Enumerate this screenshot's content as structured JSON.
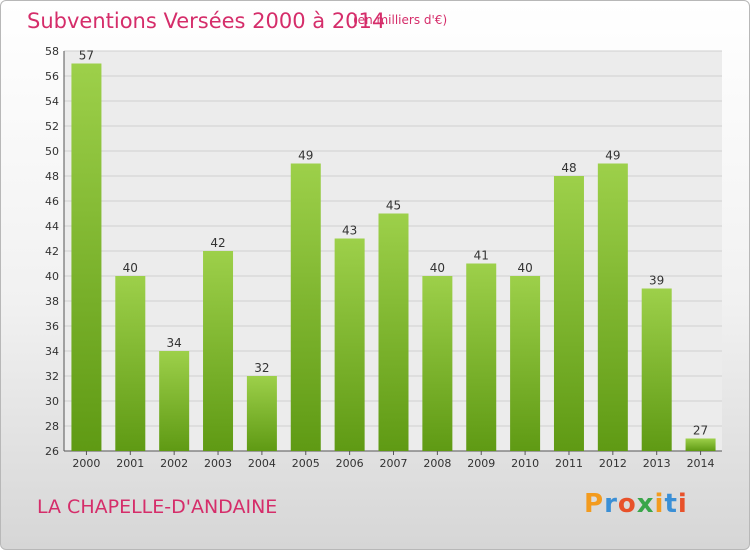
{
  "header": {
    "title": "Subventions Versées 2000 à 2014",
    "subtitle": "(en milliers d'€)"
  },
  "footer": {
    "commune": "LA CHAPELLE-D'ANDAINE",
    "logo_text": "Proxiti"
  },
  "colors": {
    "title": "#d52d6a",
    "bar_top": "#9dd04a",
    "bar_bottom": "#5f9a14",
    "logo_letters": [
      "#f39b1e",
      "#3a8fd6",
      "#e8512a",
      "#3aa64a",
      "#f39b1e",
      "#3a8fd6",
      "#e8512a"
    ]
  },
  "chart_data": {
    "type": "bar",
    "title": "Subventions Versées 2000 à 2014",
    "xlabel": "",
    "ylabel": "",
    "categories": [
      "2000",
      "2001",
      "2002",
      "2003",
      "2004",
      "2005",
      "2006",
      "2007",
      "2008",
      "2009",
      "2010",
      "2011",
      "2012",
      "2013",
      "2014"
    ],
    "values": [
      57,
      40,
      34,
      42,
      32,
      49,
      43,
      45,
      40,
      41,
      40,
      48,
      49,
      39,
      27
    ],
    "ylim": [
      26,
      58
    ],
    "yticks": [
      26,
      28,
      30,
      32,
      34,
      36,
      38,
      40,
      42,
      44,
      46,
      48,
      50,
      52,
      54,
      56,
      58
    ],
    "grid": true,
    "data_labels": true
  }
}
